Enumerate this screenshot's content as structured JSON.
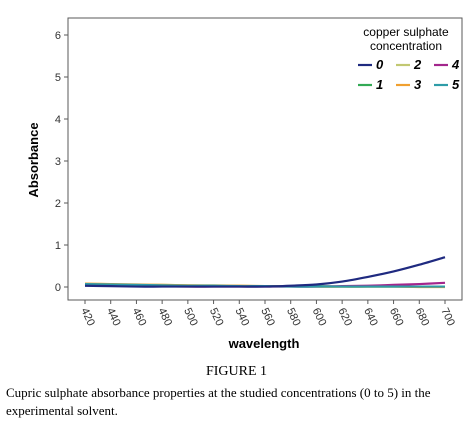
{
  "figure_label": "FIGURE 1",
  "caption": "Cupric sulphate absorbance properties at the studied concentrations (0 to 5) in the experimental solvent.",
  "chart_data": {
    "type": "line",
    "title": "",
    "xlabel": "wavelength",
    "ylabel": "Absorbance",
    "xlim": [
      420,
      700
    ],
    "ylim": [
      0,
      6
    ],
    "x": [
      420,
      440,
      460,
      480,
      500,
      520,
      540,
      560,
      580,
      600,
      620,
      640,
      660,
      680,
      700
    ],
    "x_ticks": [
      420,
      440,
      460,
      480,
      500,
      520,
      540,
      560,
      580,
      600,
      620,
      640,
      660,
      680,
      700
    ],
    "y_ticks": [
      0,
      1,
      2,
      3,
      4,
      5,
      6
    ],
    "grid": false,
    "legend": {
      "title": "copper sulphate concentration",
      "title_lines": [
        "copper sulphate",
        "concentration"
      ],
      "placement": "top-right"
    },
    "series": [
      {
        "name": "0",
        "color": "#1f2a80",
        "values": [
          0.03,
          0.02,
          0.01,
          0.01,
          0.01,
          0.01,
          0.01,
          0.01,
          0.03,
          0.06,
          0.13,
          0.24,
          0.37,
          0.53,
          0.71
        ]
      },
      {
        "name": "1",
        "color": "#33aa55",
        "values": [
          0.05,
          0.05,
          0.04,
          0.04,
          0.03,
          0.03,
          0.02,
          0.02,
          0.02,
          0.02,
          0.01,
          0.01,
          0.01,
          0.01,
          0.01
        ]
      },
      {
        "name": "2",
        "color": "#c2c872",
        "values": [
          0.06,
          0.06,
          0.05,
          0.05,
          0.04,
          0.04,
          0.03,
          0.02,
          0.02,
          0.01,
          0.01,
          0.01,
          0.01,
          0.01,
          0.01
        ]
      },
      {
        "name": "3",
        "color": "#f0a030",
        "values": [
          0.08,
          0.07,
          0.06,
          0.05,
          0.04,
          0.03,
          0.03,
          0.02,
          0.02,
          0.01,
          0.01,
          0.01,
          0.01,
          0.0,
          0.0
        ]
      },
      {
        "name": "4",
        "color": "#a3268c",
        "values": [
          0.04,
          0.03,
          0.02,
          0.02,
          0.01,
          0.01,
          0.01,
          0.01,
          0.01,
          0.01,
          0.02,
          0.03,
          0.05,
          0.07,
          0.1
        ]
      },
      {
        "name": "5",
        "color": "#2e9ca8",
        "values": [
          0.07,
          0.06,
          0.05,
          0.04,
          0.03,
          0.03,
          0.02,
          0.02,
          0.01,
          0.01,
          0.01,
          0.01,
          0.01,
          0.01,
          0.01
        ]
      }
    ]
  }
}
